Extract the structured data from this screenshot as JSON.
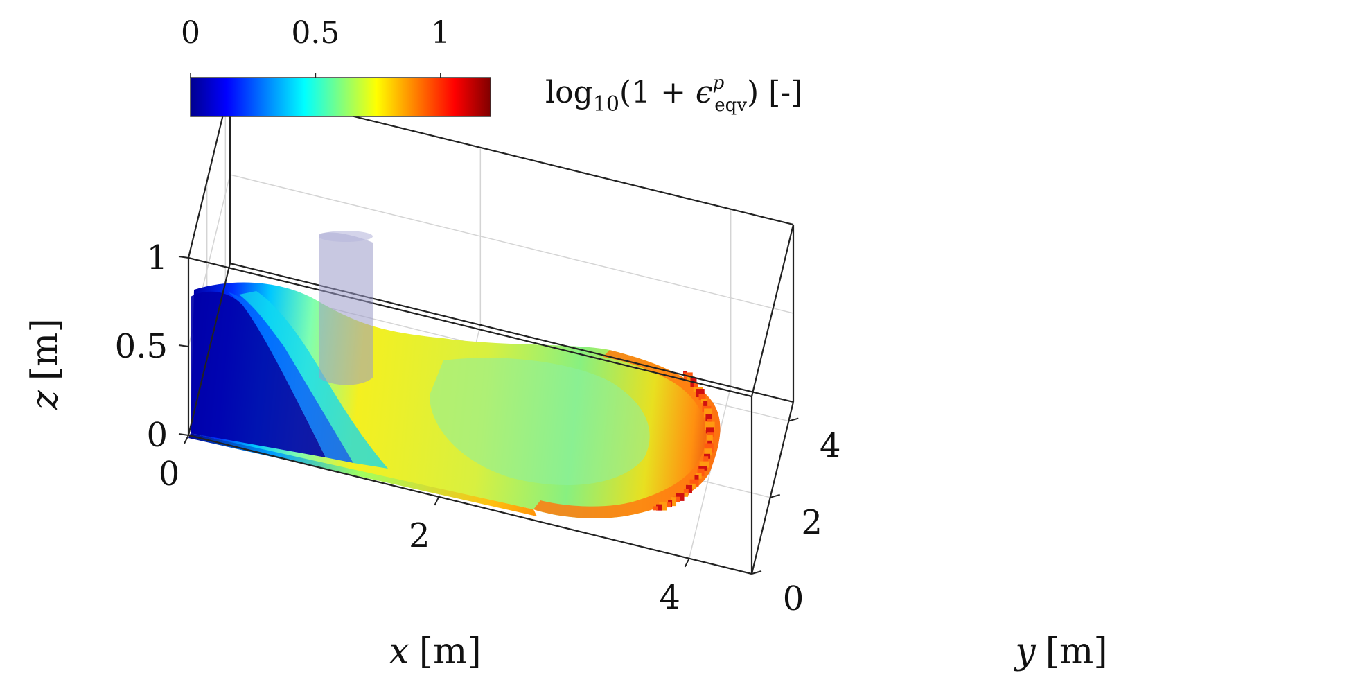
{
  "chart_data": {
    "type": "3d-surface-scatter",
    "colorbar": {
      "ticks": [
        "0",
        "0.5",
        "1"
      ],
      "tick_values": [
        0,
        0.5,
        1
      ],
      "range": [
        0,
        1.2
      ],
      "colormap": "jet",
      "label_parts": {
        "log": "log",
        "sub10": "10",
        "open": "(1 + ",
        "eps": "ϵ",
        "sup": "p",
        "sub": "eqv",
        "close": ") [-]"
      }
    },
    "axes": {
      "x": {
        "label_var": "x",
        "label_unit": "[m]",
        "ticks": [
          "0",
          "2",
          "4"
        ],
        "tick_values": [
          0,
          2,
          4
        ],
        "range": [
          0,
          4.5
        ]
      },
      "y": {
        "label_var": "y",
        "label_unit": "[m]",
        "ticks": [
          "0",
          "2",
          "4"
        ],
        "tick_values": [
          0,
          2,
          4
        ],
        "range": [
          0,
          4.5
        ]
      },
      "z": {
        "label_var": "z",
        "label_unit": "[m]",
        "ticks": [
          "0",
          "0.5",
          "1"
        ],
        "tick_values": [
          0,
          0.5,
          1
        ],
        "range": [
          0,
          1
        ]
      }
    },
    "grid": true,
    "legend": "none",
    "colors": {
      "box": "#222222",
      "grid": "#d4d4d4",
      "column": "#9a9ac8"
    }
  }
}
